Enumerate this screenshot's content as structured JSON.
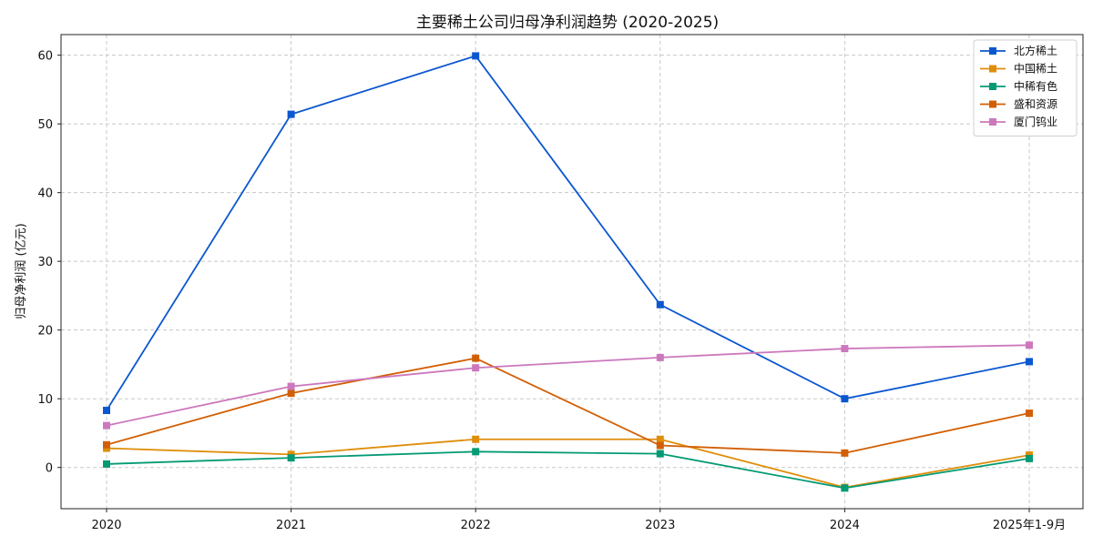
{
  "chart_data": {
    "type": "line",
    "title": "主要稀土公司归母净利润趋势 (2020-2025)",
    "xlabel": "",
    "ylabel": "归母净利润 (亿元)",
    "categories": [
      "2020",
      "2021",
      "2022",
      "2023",
      "2024",
      "2025年1-9月"
    ],
    "yticks": [
      0,
      10,
      20,
      30,
      40,
      50,
      60
    ],
    "ylim": [
      -6,
      63
    ],
    "grid": true,
    "legend_position": "top-right",
    "marker": "square",
    "series": [
      {
        "name": "北方稀土",
        "color": "#0b57d0",
        "values": [
          8.3,
          51.4,
          59.9,
          23.7,
          10.0,
          15.4
        ]
      },
      {
        "name": "中国稀土",
        "color": "#df8e0a",
        "values": [
          2.8,
          1.9,
          4.1,
          4.1,
          -2.9,
          1.8
        ]
      },
      {
        "name": "中稀有色",
        "color": "#049a74",
        "values": [
          0.5,
          1.4,
          2.3,
          2.0,
          -3.0,
          1.3
        ]
      },
      {
        "name": "盛和资源",
        "color": "#d25f04",
        "values": [
          3.3,
          10.8,
          15.9,
          3.2,
          2.1,
          7.9
        ]
      },
      {
        "name": "厦门钨业",
        "color": "#cc78bc",
        "values": [
          6.1,
          11.8,
          14.5,
          16.0,
          17.3,
          17.8
        ]
      }
    ]
  }
}
